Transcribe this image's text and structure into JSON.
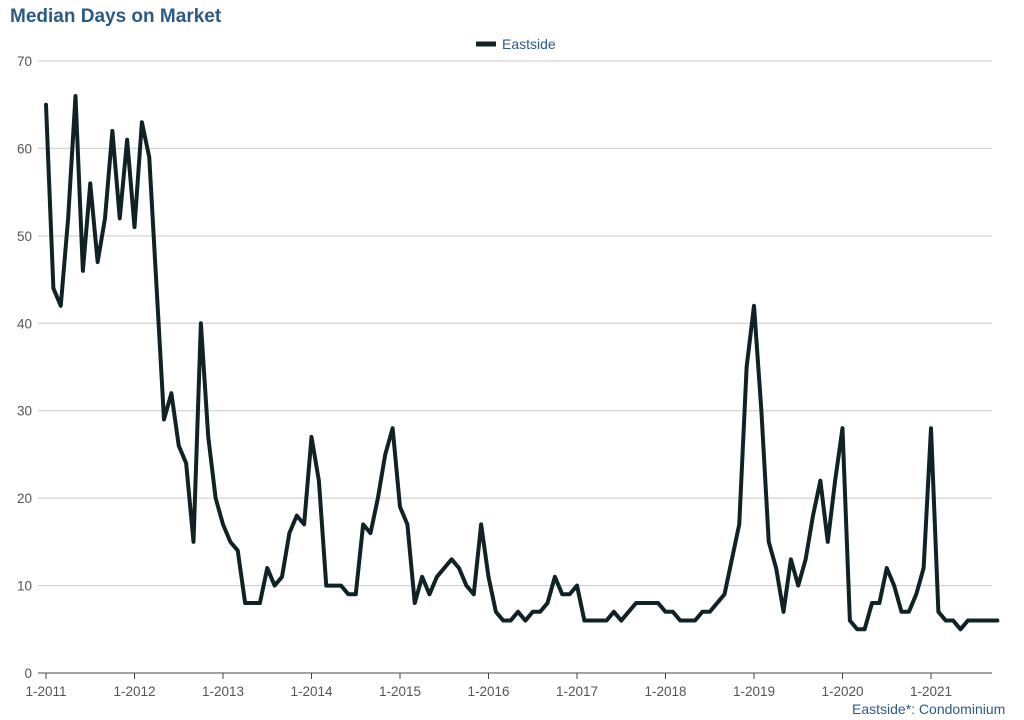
{
  "chart_data": {
    "type": "line",
    "title": "Median Days on Market",
    "legend_position": "top-center",
    "footnote": "Eastside*: Condominium",
    "grid": true,
    "y_range": [
      0,
      70
    ],
    "y_ticks": [
      0,
      10,
      20,
      30,
      40,
      50,
      60,
      70
    ],
    "x_ticks": [
      "1-2011",
      "1-2012",
      "1-2013",
      "1-2014",
      "1-2015",
      "1-2016",
      "1-2017",
      "1-2018",
      "1-2019",
      "1-2020",
      "1-2021"
    ],
    "x_start": "2011-01",
    "series": [
      {
        "name": "Eastside",
        "color": "#0f2326",
        "values": [
          65,
          44,
          42,
          52,
          66,
          46,
          56,
          47,
          52,
          62,
          52,
          61,
          51,
          63,
          59,
          44,
          29,
          32,
          26,
          24,
          15,
          40,
          27,
          20,
          17,
          15,
          14,
          8,
          8,
          8,
          12,
          10,
          11,
          16,
          18,
          17,
          27,
          22,
          10,
          10,
          10,
          9,
          9,
          17,
          16,
          20,
          25,
          28,
          19,
          17,
          8,
          11,
          9,
          11,
          12,
          13,
          12,
          10,
          9,
          17,
          11,
          7,
          6,
          6,
          7,
          6,
          7,
          7,
          8,
          11,
          9,
          9,
          10,
          6,
          6,
          6,
          6,
          7,
          6,
          7,
          8,
          8,
          8,
          8,
          7,
          7,
          6,
          6,
          6,
          7,
          7,
          8,
          9,
          13,
          17,
          35,
          42,
          30,
          15,
          12,
          7,
          13,
          10,
          13,
          18,
          22,
          15,
          22,
          28,
          6,
          5,
          5,
          8,
          8,
          12,
          10,
          7,
          7,
          9,
          12,
          28,
          7,
          6,
          6,
          5,
          6,
          6,
          6,
          6,
          6
        ]
      }
    ]
  }
}
